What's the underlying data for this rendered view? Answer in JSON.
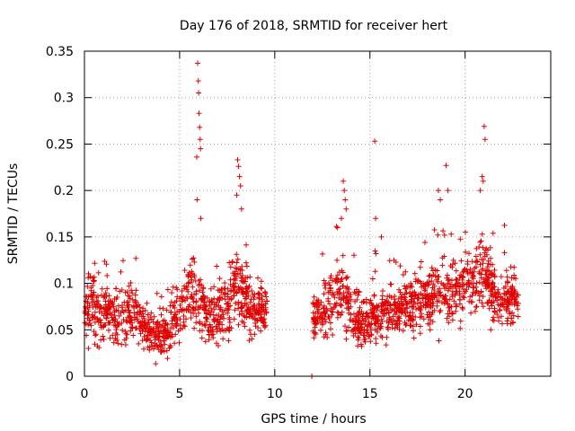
{
  "chart_data": {
    "type": "scatter",
    "title": "Day 176 of 2018, SRMTID for receiver hert",
    "xlabel": "GPS time / hours",
    "ylabel": "SRMTID / TECUs",
    "xlim": [
      0,
      24.5
    ],
    "ylim": [
      0,
      0.35
    ],
    "xticks": [
      0,
      5,
      10,
      15,
      20
    ],
    "xtick_labels": [
      "0",
      "5",
      "10",
      "15",
      "20"
    ],
    "yticks": [
      0,
      0.05,
      0.1,
      0.15,
      0.2,
      0.25,
      0.3,
      0.35
    ],
    "ytick_labels": [
      "0",
      "0.05",
      "0.1",
      "0.15",
      "0.2",
      "0.25",
      "0.3",
      "0.35"
    ],
    "grid": true,
    "marker": "plus",
    "color": "#e00000",
    "series": [
      {
        "name": "SRMTID",
        "segments": [
          {
            "x": [
              0.0,
              0.4,
              0.8,
              1.2,
              1.6,
              2.0,
              2.4,
              2.8,
              3.2,
              3.6,
              4.0,
              4.4,
              4.8,
              5.2,
              5.6,
              6.0,
              6.4,
              6.8,
              7.2,
              7.6,
              8.0,
              8.4,
              8.8,
              9.2,
              9.6
            ],
            "y": [
              0.06,
              0.08,
              0.06,
              0.07,
              0.065,
              0.06,
              0.07,
              0.065,
              0.05,
              0.045,
              0.045,
              0.05,
              0.065,
              0.075,
              0.09,
              0.08,
              0.065,
              0.065,
              0.07,
              0.085,
              0.1,
              0.085,
              0.07,
              0.075,
              0.07
            ],
            "spread": [
              0.025,
              0.03,
              0.025,
              0.025,
              0.025,
              0.025,
              0.025,
              0.025,
              0.02,
              0.02,
              0.02,
              0.02,
              0.025,
              0.025,
              0.03,
              0.03,
              0.025,
              0.025,
              0.025,
              0.03,
              0.035,
              0.03,
              0.025,
              0.025,
              0.02
            ]
          },
          {
            "x": [
              12.0,
              12.4,
              12.8,
              13.2,
              13.6,
              14.0,
              14.4,
              14.8,
              15.2,
              15.6,
              16.0,
              16.4,
              16.8,
              17.2,
              17.6,
              18.0,
              18.4,
              18.8,
              19.2,
              19.6,
              20.0,
              20.4,
              20.8,
              21.2,
              21.6,
              22.0,
              22.4,
              22.8
            ],
            "y": [
              0.065,
              0.07,
              0.075,
              0.085,
              0.09,
              0.07,
              0.06,
              0.06,
              0.065,
              0.065,
              0.07,
              0.07,
              0.075,
              0.075,
              0.08,
              0.085,
              0.095,
              0.1,
              0.09,
              0.09,
              0.1,
              0.105,
              0.11,
              0.1,
              0.085,
              0.08,
              0.085,
              0.08
            ],
            "spread": [
              0.025,
              0.025,
              0.03,
              0.03,
              0.035,
              0.025,
              0.025,
              0.02,
              0.02,
              0.02,
              0.02,
              0.02,
              0.025,
              0.025,
              0.025,
              0.025,
              0.03,
              0.035,
              0.03,
              0.025,
              0.03,
              0.03,
              0.035,
              0.03,
              0.025,
              0.025,
              0.025,
              0.025
            ]
          }
        ],
        "outliers": {
          "x": [
            5.95,
            5.98,
            6.0,
            6.02,
            6.05,
            6.08,
            6.1,
            5.9,
            5.92,
            6.12,
            8.05,
            8.1,
            8.15,
            8.2,
            8.0,
            8.25,
            13.6,
            13.65,
            13.7,
            13.75,
            13.5,
            13.3,
            15.25,
            15.3,
            15.6,
            18.6,
            18.7,
            19.0,
            19.1,
            20.8,
            20.9,
            21.0,
            21.05,
            20.95,
            11.95
          ],
          "y": [
            0.337,
            0.318,
            0.305,
            0.283,
            0.268,
            0.255,
            0.245,
            0.236,
            0.19,
            0.17,
            0.233,
            0.226,
            0.215,
            0.205,
            0.195,
            0.18,
            0.21,
            0.2,
            0.19,
            0.18,
            0.17,
            0.16,
            0.253,
            0.17,
            0.15,
            0.2,
            0.19,
            0.227,
            0.2,
            0.2,
            0.215,
            0.269,
            0.255,
            0.21,
            0.0
          ]
        }
      }
    ]
  }
}
